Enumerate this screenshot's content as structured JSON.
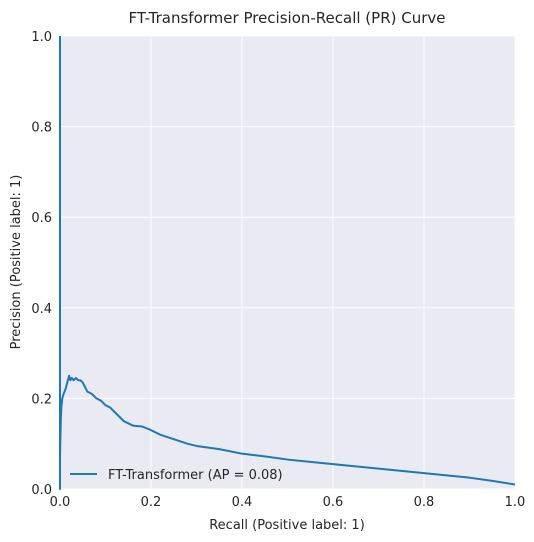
{
  "chart_data": {
    "type": "line",
    "title": "FT-Transformer Precision-Recall (PR) Curve",
    "xlabel": "Recall (Positive label: 1)",
    "ylabel": "Precision (Positive label: 1)",
    "xlim": [
      0.0,
      1.0
    ],
    "ylim": [
      0.0,
      1.0
    ],
    "xticks": [
      "0.0",
      "0.2",
      "0.4",
      "0.6",
      "0.8",
      "1.0"
    ],
    "yticks": [
      "0.0",
      "0.2",
      "0.4",
      "0.6",
      "0.8",
      "1.0"
    ],
    "grid": true,
    "legend_position": "lower-left",
    "series": [
      {
        "name": "FT-Transformer (AP = 0.08)",
        "color": "#1f77b4",
        "x": [
          0.0,
          0.0,
          0.0,
          0.001,
          0.002,
          0.003,
          0.005,
          0.008,
          0.012,
          0.016,
          0.02,
          0.023,
          0.026,
          0.03,
          0.035,
          0.04,
          0.045,
          0.05,
          0.055,
          0.06,
          0.07,
          0.08,
          0.09,
          0.1,
          0.11,
          0.12,
          0.13,
          0.14,
          0.15,
          0.16,
          0.18,
          0.2,
          0.22,
          0.25,
          0.28,
          0.3,
          0.35,
          0.4,
          0.45,
          0.5,
          0.55,
          0.6,
          0.65,
          0.7,
          0.75,
          0.8,
          0.85,
          0.9,
          0.95,
          1.0
        ],
        "y": [
          1.0,
          0.0,
          0.07,
          0.12,
          0.16,
          0.18,
          0.2,
          0.21,
          0.22,
          0.235,
          0.25,
          0.24,
          0.245,
          0.24,
          0.245,
          0.24,
          0.24,
          0.235,
          0.225,
          0.215,
          0.21,
          0.2,
          0.195,
          0.185,
          0.18,
          0.17,
          0.16,
          0.15,
          0.145,
          0.14,
          0.138,
          0.13,
          0.12,
          0.11,
          0.1,
          0.095,
          0.088,
          0.078,
          0.072,
          0.065,
          0.06,
          0.055,
          0.05,
          0.045,
          0.04,
          0.035,
          0.03,
          0.025,
          0.018,
          0.01
        ]
      }
    ]
  }
}
